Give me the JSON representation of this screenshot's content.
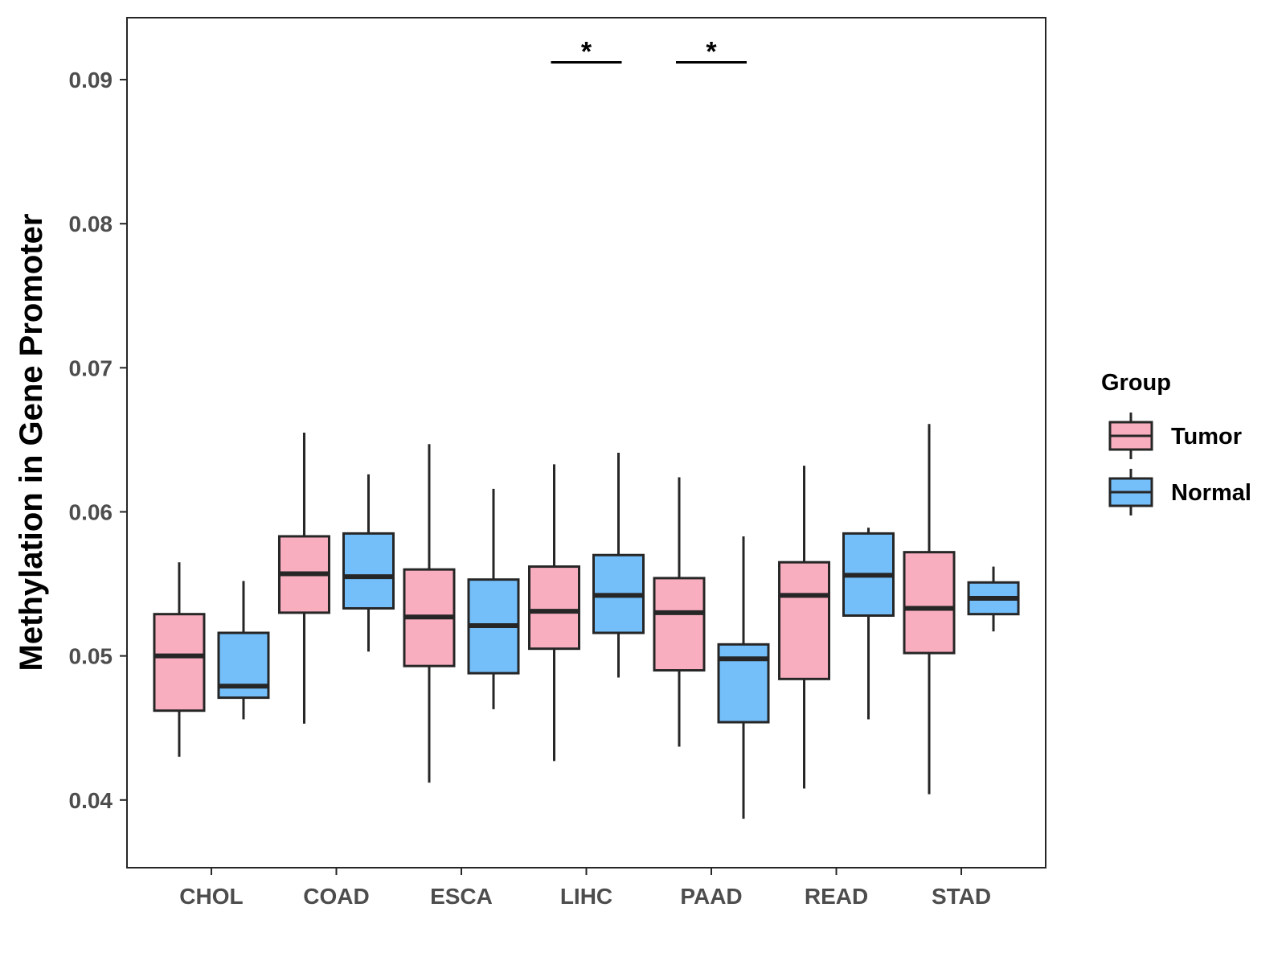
{
  "chart_data": {
    "type": "boxplot",
    "title": "",
    "xlabel": "",
    "ylabel": "Methylation in Gene Promoter",
    "ylim": [
      0.0353,
      0.0943
    ],
    "yticks": [
      "0.04",
      "0.05",
      "0.06",
      "0.07",
      "0.08",
      "0.09"
    ],
    "categories": [
      "CHOL",
      "COAD",
      "ESCA",
      "LIHC",
      "PAAD",
      "READ",
      "STAD"
    ],
    "legend": {
      "title": "Group",
      "position": "right",
      "entries": [
        "Tumor",
        "Normal"
      ]
    },
    "colors": {
      "Tumor": "#f9aec0",
      "Normal": "#74bffa",
      "outline": "#262626"
    },
    "series": [
      {
        "name": "Tumor",
        "boxes": [
          {
            "min": 0.043,
            "q1": 0.0462,
            "median": 0.05,
            "q3": 0.0529,
            "max": 0.0565
          },
          {
            "min": 0.0453,
            "q1": 0.053,
            "median": 0.0557,
            "q3": 0.0583,
            "max": 0.0655
          },
          {
            "min": 0.0412,
            "q1": 0.0493,
            "median": 0.0527,
            "q3": 0.056,
            "max": 0.0647
          },
          {
            "min": 0.0427,
            "q1": 0.0505,
            "median": 0.0531,
            "q3": 0.0562,
            "max": 0.0633
          },
          {
            "min": 0.0437,
            "q1": 0.049,
            "median": 0.053,
            "q3": 0.0554,
            "max": 0.0624
          },
          {
            "min": 0.0408,
            "q1": 0.0484,
            "median": 0.0542,
            "q3": 0.0565,
            "max": 0.0632
          },
          {
            "min": 0.0404,
            "q1": 0.0502,
            "median": 0.0533,
            "q3": 0.0572,
            "max": 0.0661
          }
        ]
      },
      {
        "name": "Normal",
        "boxes": [
          {
            "min": 0.0456,
            "q1": 0.0471,
            "median": 0.0479,
            "q3": 0.0516,
            "max": 0.0552
          },
          {
            "min": 0.0503,
            "q1": 0.0533,
            "median": 0.0555,
            "q3": 0.0585,
            "max": 0.0626
          },
          {
            "min": 0.0463,
            "q1": 0.0488,
            "median": 0.0521,
            "q3": 0.0553,
            "max": 0.0616
          },
          {
            "min": 0.0485,
            "q1": 0.0516,
            "median": 0.0542,
            "q3": 0.057,
            "max": 0.0641
          },
          {
            "min": 0.0387,
            "q1": 0.0454,
            "median": 0.0498,
            "q3": 0.0508,
            "max": 0.0583
          },
          {
            "min": 0.0456,
            "q1": 0.0528,
            "median": 0.0556,
            "q3": 0.0585,
            "max": 0.0589
          },
          {
            "min": 0.0517,
            "q1": 0.0529,
            "median": 0.054,
            "q3": 0.0551,
            "max": 0.0562
          }
        ]
      }
    ],
    "annotations": [
      {
        "category": "LIHC",
        "text": "*",
        "y": 0.0912
      },
      {
        "category": "PAAD",
        "text": "*",
        "y": 0.0912
      }
    ]
  }
}
